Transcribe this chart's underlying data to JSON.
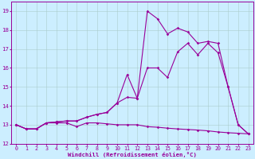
{
  "background_color": "#cceeff",
  "grid_color": "#aacccc",
  "line_color": "#990099",
  "xlabel": "Windchill (Refroidissement éolien,°C)",
  "xlim": [
    -0.5,
    23.5
  ],
  "ylim": [
    12,
    19.5
  ],
  "yticks": [
    12,
    13,
    14,
    15,
    16,
    17,
    18,
    19
  ],
  "xticks": [
    0,
    1,
    2,
    3,
    4,
    5,
    6,
    7,
    8,
    9,
    10,
    11,
    12,
    13,
    14,
    15,
    16,
    17,
    18,
    19,
    20,
    21,
    22,
    23
  ],
  "series1_x": [
    0,
    1,
    2,
    3,
    4,
    5,
    6,
    7,
    8,
    9,
    10,
    11,
    12,
    13,
    14,
    15,
    16,
    17,
    18,
    19,
    20,
    21,
    22,
    23
  ],
  "series1_y": [
    13.0,
    12.78,
    12.78,
    13.1,
    13.1,
    13.1,
    12.9,
    13.1,
    13.1,
    13.05,
    13.0,
    13.0,
    13.0,
    12.9,
    12.87,
    12.82,
    12.78,
    12.75,
    12.72,
    12.68,
    12.62,
    12.58,
    12.55,
    12.52
  ],
  "series2_x": [
    0,
    1,
    2,
    3,
    4,
    5,
    6,
    7,
    8,
    9,
    10,
    11,
    12,
    13,
    14,
    15,
    16,
    17,
    18,
    19,
    20,
    21,
    22,
    23
  ],
  "series2_y": [
    13.0,
    12.78,
    12.78,
    13.1,
    13.15,
    13.2,
    13.2,
    13.4,
    13.55,
    13.65,
    14.15,
    14.45,
    14.4,
    16.0,
    16.0,
    15.5,
    16.85,
    17.3,
    16.7,
    17.3,
    16.8,
    15.0,
    13.0,
    12.52
  ],
  "series3_x": [
    0,
    1,
    2,
    3,
    4,
    5,
    6,
    7,
    8,
    9,
    10,
    11,
    12,
    13,
    14,
    15,
    16,
    17,
    18,
    19,
    20,
    21,
    22,
    23
  ],
  "series3_y": [
    13.0,
    12.78,
    12.78,
    13.1,
    13.15,
    13.2,
    13.2,
    13.4,
    13.55,
    13.65,
    14.15,
    15.65,
    14.4,
    19.0,
    18.6,
    17.8,
    18.1,
    17.9,
    17.3,
    17.4,
    17.3,
    15.0,
    13.0,
    12.52
  ],
  "label_fontsize": 4.8,
  "xlabel_fontsize": 5.2,
  "marker_size": 1.8,
  "line_width": 0.8
}
